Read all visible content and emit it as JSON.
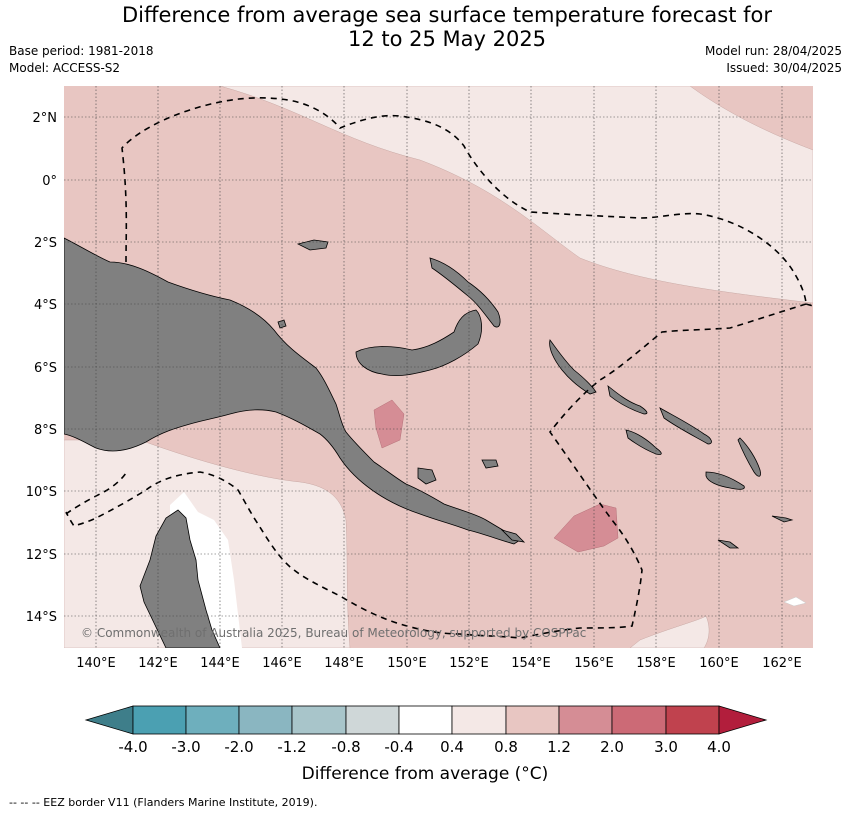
{
  "header": {
    "title_line1": "Difference from average sea surface temperature forecast for",
    "title_line2": "12 to 25 May 2025",
    "base_period": "Base period: 1981-2018",
    "model": "Model: ACCESS-S2",
    "model_run": "Model run: 28/04/2025",
    "issued": "Issued: 30/04/2025"
  },
  "map": {
    "lon_labels": [
      "140°E",
      "142°E",
      "144°E",
      "146°E",
      "148°E",
      "150°E",
      "152°E",
      "154°E",
      "156°E",
      "158°E",
      "160°E",
      "162°E"
    ],
    "lat_labels": [
      "2°N",
      "0°",
      "2°S",
      "4°S",
      "6°S",
      "8°S",
      "10°S",
      "12°S",
      "14°S"
    ],
    "lon_range": [
      139,
      163
    ],
    "lat_range": [
      -15,
      3
    ],
    "credit": "© Commonwealth of Australia 2025, Bureau of Meteorology, supported by COSPPac",
    "colors": {
      "land": "#808080",
      "anom_0_4_0_8": "#f4e8e6",
      "anom_0_8_1_2": "#e8c6c2",
      "anom_1_2_2_0": "#d58d95"
    }
  },
  "colorbar": {
    "labels": [
      "-4.0",
      "-3.0",
      "-2.0",
      "-1.2",
      "-0.8",
      "-0.4",
      "0.4",
      "0.8",
      "1.2",
      "2.0",
      "3.0",
      "4.0"
    ],
    "colors": [
      "#3e7e8a",
      "#4ba0b2",
      "#6eafbd",
      "#8ab6c1",
      "#a8c5ca",
      "#cfd7d8",
      "#ffffff",
      "#f4e8e6",
      "#e8c6c2",
      "#d58d95",
      "#cc6a76",
      "#c0424e",
      "#b21e3c"
    ],
    "title": "Difference from average (°C)"
  },
  "footer": "--  --  -- EEZ border V11 (Flanders Marine Institute, 2019)."
}
